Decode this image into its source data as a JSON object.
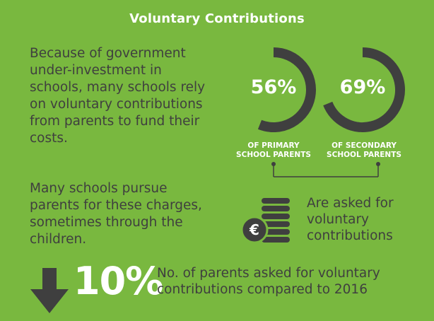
{
  "title": "Voluntary Contributions",
  "intro_text": "Because of government under-investment in schools, many schools rely on voluntary contributions from parents to fund their costs.",
  "pursue_text": "Many schools pursue parents for these charges, sometimes through the children.",
  "stats": [
    {
      "value": "56%",
      "fraction": 0.56,
      "caption_line1": "OF PRIMARY",
      "caption_line2": "SCHOOL PARENTS"
    },
    {
      "value": "69%",
      "fraction": 0.69,
      "caption_line1": "OF SECONDARY",
      "caption_line2": "SCHOOL PARENTS"
    }
  ],
  "asked_text": "Are asked for voluntary contributions",
  "coin_symbol": "€",
  "change": {
    "value": "10%",
    "direction": "down",
    "description": "No. of parents asked for voluntary contributions compared to 2016"
  },
  "colors": {
    "background": "#79b83f",
    "dark": "#3f3f3f",
    "light": "#ffffff"
  }
}
